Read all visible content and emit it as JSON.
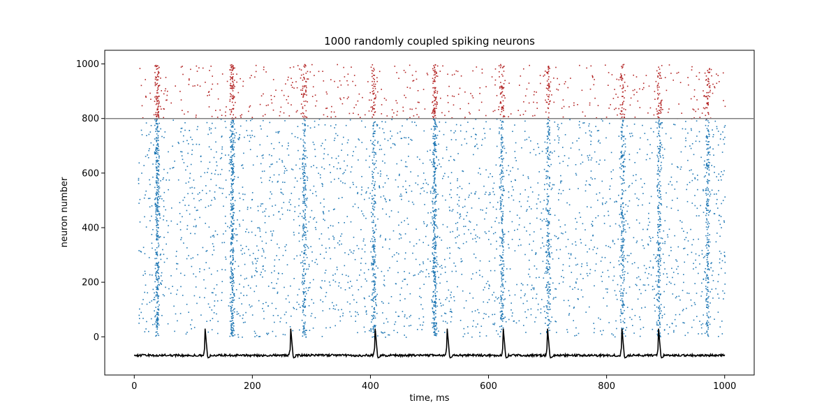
{
  "chart_data": {
    "type": "scatter",
    "title": "1000 randomly coupled spiking neurons",
    "xlabel": "time, ms",
    "ylabel": "neuron number",
    "xlim": [
      -50,
      1050
    ],
    "ylim": [
      -140,
      1050
    ],
    "xticks": [
      0,
      200,
      400,
      600,
      800,
      1000
    ],
    "yticks": [
      0,
      200,
      400,
      600,
      800,
      1000
    ],
    "grid": false,
    "legend": "none",
    "reference_line": {
      "y": 800,
      "color": "#808080"
    },
    "colors": {
      "excitatory": "#1f77b4",
      "inhibitory": "#b22222",
      "voltage": "#000000"
    },
    "neuron_groups": {
      "excitatory_range": [
        0,
        800
      ],
      "inhibitory_range": [
        800,
        1000
      ]
    },
    "bursts_ms": [
      38,
      165,
      287,
      405,
      508,
      622,
      700,
      826,
      888,
      970
    ],
    "voltage_trace": {
      "baseline": -68,
      "spike_peak": 30,
      "spike_times_ms": [
        120,
        265,
        408,
        530,
        625,
        700,
        826,
        888
      ]
    }
  }
}
